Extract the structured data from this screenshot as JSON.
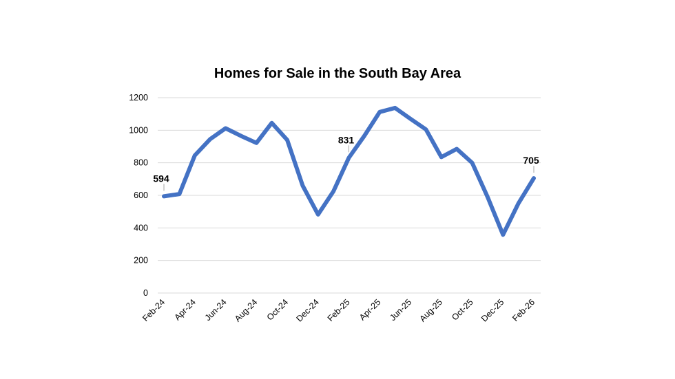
{
  "chart_data": {
    "type": "line",
    "title": "Homes for Sale in the South Bay Area",
    "xlabel": "",
    "ylabel": "",
    "ylim": [
      0,
      1200
    ],
    "yticks": [
      0,
      200,
      400,
      600,
      800,
      1000,
      1200
    ],
    "grid": "horizontal",
    "legend": "none",
    "color": "#4472C4",
    "x": [
      "Feb-24",
      "Mar-24",
      "Apr-24",
      "May-24",
      "Jun-24",
      "Jul-24",
      "Aug-24",
      "Sep-24",
      "Oct-24",
      "Nov-24",
      "Dec-24",
      "Jan-25",
      "Feb-25",
      "Mar-25",
      "Apr-25",
      "May-25",
      "Jun-25",
      "Jul-25",
      "Aug-25",
      "Sep-25",
      "Oct-25",
      "Nov-25",
      "Dec-25",
      "Jan-26",
      "Feb-26"
    ],
    "tick_labels": [
      "Feb-24",
      "Apr-24",
      "Jun-24",
      "Aug-24",
      "Oct-24",
      "Dec-24",
      "Feb-25",
      "Apr-25",
      "Jun-25",
      "Aug-25",
      "Oct-25",
      "Dec-25",
      "Feb-26"
    ],
    "values": [
      594,
      608,
      845,
      945,
      1012,
      965,
      922,
      1045,
      940,
      660,
      482,
      625,
      831,
      965,
      1112,
      1137,
      1070,
      1005,
      835,
      885,
      800,
      590,
      358,
      550,
      705
    ],
    "data_labels": [
      {
        "index": 0,
        "text": "594"
      },
      {
        "index": 12,
        "text": "831"
      },
      {
        "index": 24,
        "text": "705"
      }
    ]
  }
}
